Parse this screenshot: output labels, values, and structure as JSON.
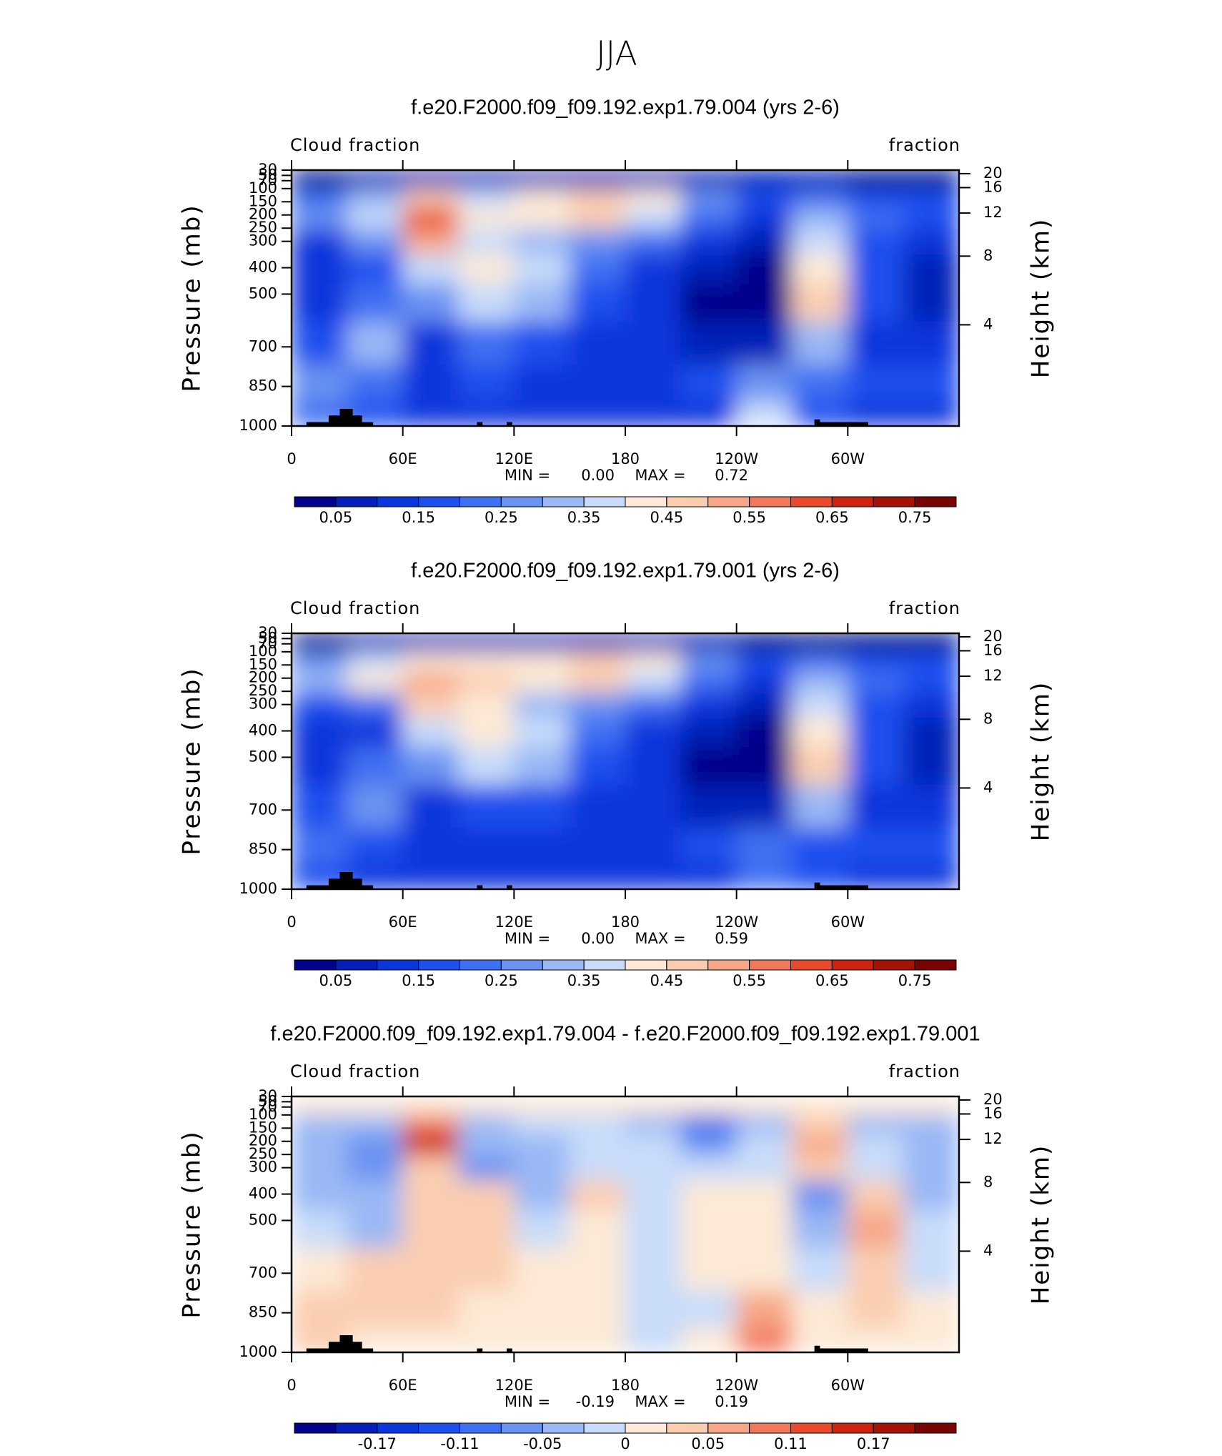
{
  "title": "JJA",
  "chart_data": [
    {
      "type": "contour",
      "title": "f.e20.F2000.f09_f09.192.exp1.79.004 (yrs 2-6)",
      "left_label": "Cloud fraction",
      "right_label": "fraction",
      "ylabel": "Pressure (mb)",
      "y2label": "Height (km)",
      "x": [
        15,
        45,
        75,
        105,
        135,
        165,
        195,
        225,
        255,
        285,
        315,
        345
      ],
      "y": [
        65,
        137,
        212,
        300,
        400,
        525,
        687,
        850,
        962
      ],
      "z": [
        [
          0.04,
          0.05,
          0.06,
          0.05,
          0.05,
          0.06,
          0.06,
          0.05,
          0.05,
          0.05,
          0.04,
          0.04
        ],
        [
          0.2,
          0.3,
          0.45,
          0.35,
          0.4,
          0.45,
          0.4,
          0.25,
          0.15,
          0.2,
          0.15,
          0.15
        ],
        [
          0.25,
          0.35,
          0.6,
          0.4,
          0.4,
          0.45,
          0.35,
          0.2,
          0.12,
          0.3,
          0.2,
          0.15
        ],
        [
          0.12,
          0.25,
          0.5,
          0.35,
          0.3,
          0.25,
          0.2,
          0.1,
          0.05,
          0.35,
          0.15,
          0.1
        ],
        [
          0.1,
          0.15,
          0.35,
          0.4,
          0.35,
          0.2,
          0.12,
          0.05,
          0.03,
          0.4,
          0.15,
          0.08
        ],
        [
          0.12,
          0.2,
          0.25,
          0.38,
          0.32,
          0.15,
          0.1,
          0.04,
          0.03,
          0.45,
          0.15,
          0.08
        ],
        [
          0.18,
          0.3,
          0.12,
          0.2,
          0.15,
          0.12,
          0.1,
          0.05,
          0.05,
          0.3,
          0.12,
          0.1
        ],
        [
          0.25,
          0.2,
          0.1,
          0.15,
          0.12,
          0.12,
          0.12,
          0.15,
          0.25,
          0.2,
          0.15,
          0.15
        ],
        [
          0.2,
          0.15,
          0.1,
          0.1,
          0.1,
          0.12,
          0.12,
          0.12,
          0.35,
          0.15,
          0.12,
          0.12
        ]
      ],
      "xlim": [
        0,
        360
      ],
      "xticks": [
        0,
        {
          "value": 60,
          "label": "60E"
        },
        {
          "value": 120,
          "label": "120E"
        },
        180,
        {
          "value": 240,
          "label": "120W"
        },
        {
          "value": 300,
          "label": "60W"
        }
      ],
      "ylim": [
        1000,
        30
      ],
      "yticks": [
        1000,
        850,
        700,
        500,
        400,
        300,
        250,
        200,
        150,
        100,
        70,
        50,
        30
      ],
      "y2_scale": "standard_atmosphere",
      "y2ticks": [
        4,
        8,
        12,
        16,
        20
      ],
      "min_text": "MIN =",
      "max_text": "MAX =",
      "min": {
        "value": 0,
        "label": "0.00"
      },
      "max": 0.72,
      "colorbar": {
        "levels": [
          0.05,
          0.1,
          0.15,
          0.2,
          0.25,
          0.3,
          0.35,
          0.4,
          0.45,
          0.5,
          0.55,
          0.6,
          0.65,
          0.7,
          0.75
        ],
        "ticks": [
          0.05,
          0.15,
          0.25,
          0.35,
          0.45,
          0.55,
          0.65,
          0.75
        ],
        "colors": [
          "#00048a",
          "#0520b8",
          "#0a36dc",
          "#1f50ee",
          "#3f6ff2",
          "#6b93f2",
          "#9ab8f5",
          "#c8dcfa",
          "#fde9d6",
          "#fbcdb0",
          "#f7a787",
          "#f2785b",
          "#e84a2c",
          "#cc2410",
          "#a51208",
          "#7a0404"
        ]
      }
    },
    {
      "type": "contour",
      "title": "f.e20.F2000.f09_f09.192.exp1.79.001 (yrs 2-6)",
      "left_label": "Cloud fraction",
      "right_label": "fraction",
      "ylabel": "Pressure (mb)",
      "y2label": "Height (km)",
      "x": [
        15,
        45,
        75,
        105,
        135,
        165,
        195,
        225,
        255,
        285,
        315,
        345
      ],
      "y": [
        65,
        137,
        212,
        300,
        400,
        525,
        687,
        850,
        962
      ],
      "z": [
        [
          0.04,
          0.05,
          0.05,
          0.05,
          0.05,
          0.05,
          0.05,
          0.05,
          0.04,
          0.04,
          0.04,
          0.04
        ],
        [
          0.25,
          0.35,
          0.4,
          0.4,
          0.42,
          0.45,
          0.42,
          0.25,
          0.15,
          0.2,
          0.15,
          0.15
        ],
        [
          0.3,
          0.4,
          0.5,
          0.45,
          0.42,
          0.45,
          0.35,
          0.2,
          0.12,
          0.3,
          0.2,
          0.15
        ],
        [
          0.15,
          0.2,
          0.45,
          0.4,
          0.3,
          0.25,
          0.2,
          0.1,
          0.05,
          0.35,
          0.15,
          0.1
        ],
        [
          0.1,
          0.12,
          0.35,
          0.4,
          0.35,
          0.2,
          0.12,
          0.05,
          0.03,
          0.4,
          0.15,
          0.08
        ],
        [
          0.12,
          0.2,
          0.25,
          0.38,
          0.32,
          0.15,
          0.1,
          0.04,
          0.03,
          0.48,
          0.15,
          0.08
        ],
        [
          0.15,
          0.25,
          0.12,
          0.18,
          0.15,
          0.12,
          0.1,
          0.05,
          0.05,
          0.3,
          0.12,
          0.1
        ],
        [
          0.2,
          0.18,
          0.1,
          0.12,
          0.12,
          0.12,
          0.12,
          0.15,
          0.2,
          0.18,
          0.15,
          0.15
        ],
        [
          0.15,
          0.12,
          0.1,
          0.1,
          0.1,
          0.12,
          0.12,
          0.1,
          0.22,
          0.15,
          0.12,
          0.12
        ]
      ],
      "xlim": [
        0,
        360
      ],
      "xticks": [
        0,
        {
          "value": 60,
          "label": "60E"
        },
        {
          "value": 120,
          "label": "120E"
        },
        180,
        {
          "value": 240,
          "label": "120W"
        },
        {
          "value": 300,
          "label": "60W"
        }
      ],
      "ylim": [
        1000,
        30
      ],
      "yticks": [
        1000,
        850,
        700,
        500,
        400,
        300,
        250,
        200,
        150,
        100,
        70,
        50,
        30
      ],
      "y2_scale": "standard_atmosphere",
      "y2ticks": [
        4,
        8,
        12,
        16,
        20
      ],
      "min_text": "MIN =",
      "max_text": "MAX =",
      "min": {
        "value": 0,
        "label": "0.00"
      },
      "max": 0.59,
      "colorbar": {
        "levels": [
          0.05,
          0.1,
          0.15,
          0.2,
          0.25,
          0.3,
          0.35,
          0.4,
          0.45,
          0.5,
          0.55,
          0.6,
          0.65,
          0.7,
          0.75
        ],
        "ticks": [
          0.05,
          0.15,
          0.25,
          0.35,
          0.45,
          0.55,
          0.65,
          0.75
        ],
        "colors": [
          "#00048a",
          "#0520b8",
          "#0a36dc",
          "#1f50ee",
          "#3f6ff2",
          "#6b93f2",
          "#9ab8f5",
          "#c8dcfa",
          "#fde9d6",
          "#fbcdb0",
          "#f7a787",
          "#f2785b",
          "#e84a2c",
          "#cc2410",
          "#a51208",
          "#7a0404"
        ]
      }
    },
    {
      "type": "contour",
      "title": "f.e20.F2000.f09_f09.192.exp1.79.004 - f.e20.F2000.f09_f09.192.exp1.79.001",
      "left_label": "Cloud fraction",
      "right_label": "fraction",
      "ylabel": "Pressure (mb)",
      "y2label": "Height (km)",
      "x": [
        15,
        45,
        75,
        105,
        135,
        165,
        195,
        225,
        255,
        285,
        315,
        345
      ],
      "y": [
        65,
        137,
        212,
        300,
        400,
        525,
        687,
        850,
        962
      ],
      "z": [
        [
          0,
          0,
          0.01,
          0,
          0,
          0,
          0,
          0,
          0,
          0,
          0,
          0
        ],
        [
          -0.05,
          -0.03,
          0.1,
          -0.03,
          -0.02,
          -0.01,
          -0.03,
          -0.1,
          -0.05,
          0.03,
          -0.03,
          -0.04
        ],
        [
          -0.05,
          -0.08,
          0.14,
          -0.05,
          -0.03,
          -0.02,
          -0.02,
          -0.06,
          -0.02,
          0.06,
          -0.02,
          -0.04
        ],
        [
          -0.04,
          -0.06,
          0.04,
          -0.06,
          -0.03,
          -0.02,
          -0.02,
          -0.02,
          -0.01,
          0.03,
          -0.02,
          -0.04
        ],
        [
          -0.03,
          -0.04,
          0.03,
          0.02,
          -0.03,
          0.03,
          -0.02,
          0.01,
          0.01,
          -0.08,
          0.02,
          -0.03
        ],
        [
          -0.01,
          -0.03,
          0.04,
          0.03,
          -0.01,
          0.01,
          -0.01,
          0.01,
          0.01,
          -0.04,
          0.05,
          -0.01
        ],
        [
          0.01,
          0.02,
          0.03,
          0.02,
          0.01,
          0.01,
          -0.01,
          0.01,
          0.01,
          -0.01,
          0.03,
          -0.01
        ],
        [
          0.03,
          0.02,
          0.03,
          0.01,
          0.01,
          0.01,
          -0.01,
          -0.01,
          0.06,
          0.01,
          0.02,
          0.01
        ],
        [
          0.03,
          0.01,
          0.01,
          0.01,
          0.01,
          0.01,
          -0.01,
          0.01,
          0.1,
          0.01,
          0.01,
          0.01
        ]
      ],
      "xlim": [
        0,
        360
      ],
      "xticks": [
        0,
        {
          "value": 60,
          "label": "60E"
        },
        {
          "value": 120,
          "label": "120E"
        },
        180,
        {
          "value": 240,
          "label": "120W"
        },
        {
          "value": 300,
          "label": "60W"
        }
      ],
      "ylim": [
        1000,
        30
      ],
      "yticks": [
        1000,
        850,
        700,
        500,
        400,
        300,
        250,
        200,
        150,
        100,
        70,
        50,
        30
      ],
      "y2_scale": "standard_atmosphere",
      "y2ticks": [
        4,
        8,
        12,
        16,
        20
      ],
      "min_text": "MIN =",
      "max_text": "MAX =",
      "min": -0.19,
      "max": 0.19,
      "colorbar": {
        "levels": [
          -0.2,
          -0.17,
          -0.14,
          -0.11,
          -0.08,
          -0.05,
          -0.02,
          0,
          0.02,
          0.05,
          0.08,
          0.11,
          0.14,
          0.17,
          0.2
        ],
        "ticks": [
          -0.17,
          -0.11,
          -0.05,
          0,
          0.05,
          0.11,
          0.17
        ],
        "colors": [
          "#00048a",
          "#0520b8",
          "#0a36dc",
          "#1f50ee",
          "#3f6ff2",
          "#6b93f2",
          "#9ab8f5",
          "#c8dcfa",
          "#fde9d6",
          "#fbcdb0",
          "#f7a787",
          "#f2785b",
          "#e84a2c",
          "#cc2410",
          "#a51208",
          "#7a0404"
        ]
      }
    }
  ]
}
